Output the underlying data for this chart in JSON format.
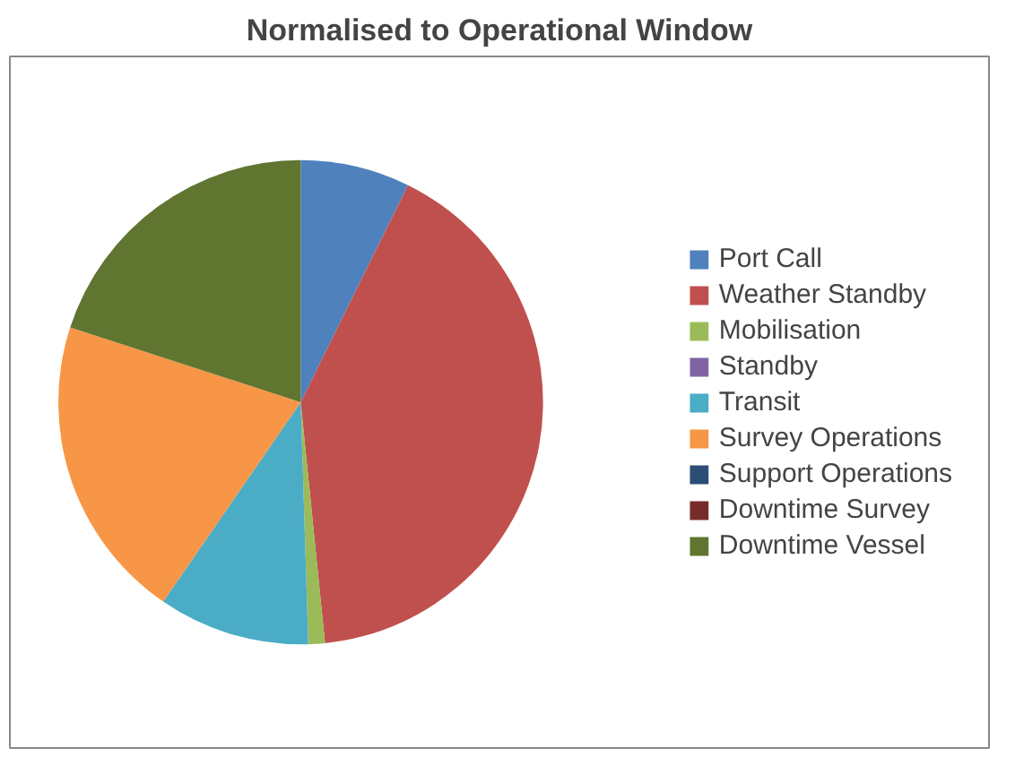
{
  "chart_data": {
    "type": "pie",
    "title": "Normalised to Operational Window",
    "categories": [
      "Port Call",
      "Weather Standby",
      "Mobilisation",
      "Standby",
      "Transit",
      "Survey Operations",
      "Support Operations",
      "Downtime Survey",
      "Downtime Vessel"
    ],
    "values": [
      7.3,
      41.1,
      1.1,
      0,
      10.1,
      20.4,
      0,
      0,
      20.0
    ],
    "colors": [
      "#4f81bd",
      "#c0504d",
      "#9bbb59",
      "#8064a2",
      "#4bacc6",
      "#f79646",
      "#2c4d75",
      "#772c2a",
      "#5f7530"
    ],
    "legend": "right"
  }
}
